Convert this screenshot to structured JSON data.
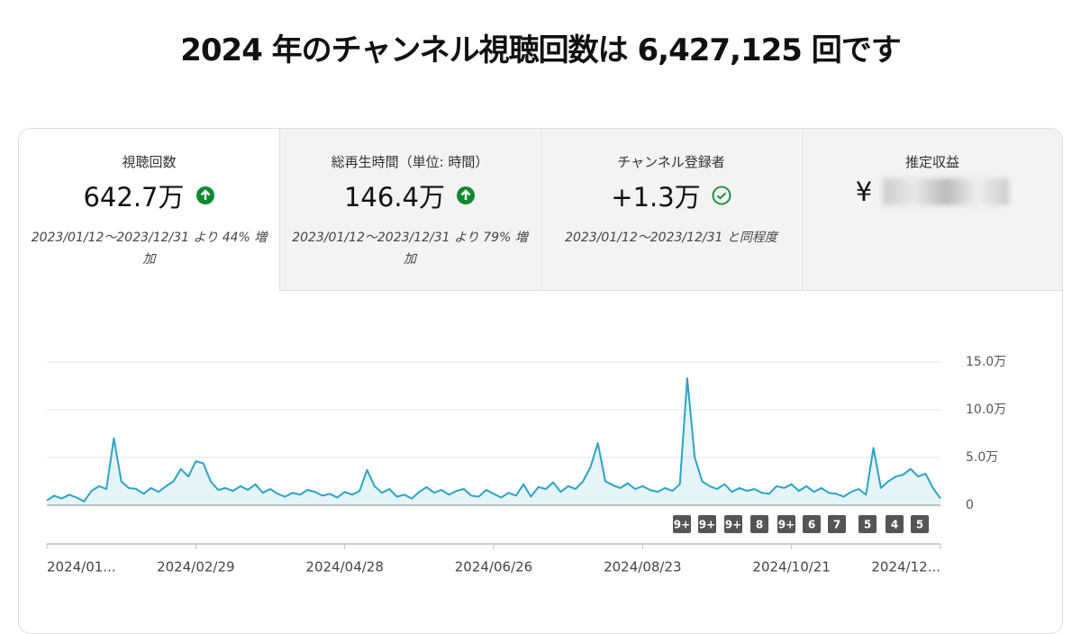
{
  "header": {
    "title": "2024 年のチャンネル視聴回数は 6,427,125 回です"
  },
  "cards": [
    {
      "label": "視聴回数",
      "value": "642.7万",
      "comparison": "2023/01/12～2023/12/31 より 44% 増加"
    },
    {
      "label": "総再生時間（単位: 時間）",
      "value": "146.4万",
      "comparison": "2023/01/12～2023/12/31 より 79% 増加"
    },
    {
      "label": "チャンネル登録者",
      "value": "+1.3万",
      "comparison": "2023/01/12～2023/12/31 と同程度"
    },
    {
      "label": "推定収益",
      "value": "¥"
    }
  ],
  "chart_data": {
    "type": "line",
    "categories": [
      "2024/01...",
      null,
      null,
      null,
      null,
      null,
      null,
      null,
      null,
      null,
      null,
      null,
      null,
      null,
      null,
      null,
      null,
      null,
      null,
      null,
      "2024/02/29",
      null,
      null,
      null,
      null,
      null,
      null,
      null,
      null,
      null,
      null,
      null,
      null,
      null,
      null,
      null,
      null,
      null,
      null,
      null,
      "2024/04/28",
      null,
      null,
      null,
      null,
      null,
      null,
      null,
      null,
      null,
      null,
      null,
      null,
      null,
      null,
      null,
      null,
      null,
      null,
      null,
      "2024/06/26",
      null,
      null,
      null,
      null,
      null,
      null,
      null,
      null,
      null,
      null,
      null,
      null,
      null,
      null,
      null,
      null,
      null,
      null,
      null,
      "2024/08/23",
      null,
      null,
      null,
      null,
      null,
      null,
      null,
      null,
      null,
      null,
      null,
      null,
      null,
      null,
      null,
      null,
      null,
      null,
      null,
      "2024/10/21",
      null,
      null,
      null,
      null,
      null,
      null,
      null,
      null,
      null,
      null,
      null,
      null,
      null,
      null,
      null,
      null,
      null,
      null,
      null,
      "2024/12..."
    ],
    "values": [
      5000,
      10000,
      7000,
      11000,
      8000,
      4000,
      15000,
      20000,
      17000,
      70000,
      25000,
      18000,
      17000,
      12000,
      18000,
      14000,
      20000,
      25000,
      38000,
      30000,
      46000,
      44000,
      25000,
      16000,
      18000,
      15000,
      20000,
      16000,
      22000,
      13000,
      17000,
      12000,
      9000,
      13000,
      11000,
      16000,
      14000,
      10000,
      12000,
      8000,
      14000,
      11000,
      15000,
      37000,
      20000,
      13000,
      17000,
      9000,
      11000,
      7000,
      14000,
      19000,
      13000,
      16000,
      11000,
      15000,
      17000,
      10000,
      9000,
      16000,
      12000,
      8000,
      13000,
      10000,
      22000,
      9000,
      19000,
      17000,
      24000,
      14000,
      20000,
      17000,
      25000,
      40000,
      65000,
      25000,
      21000,
      18000,
      23000,
      17000,
      20000,
      16000,
      14000,
      18000,
      15000,
      22000,
      133000,
      50000,
      25000,
      20000,
      17000,
      22000,
      14000,
      18000,
      15000,
      17000,
      13000,
      12000,
      20000,
      18000,
      22000,
      15000,
      20000,
      14000,
      18000,
      13000,
      12000,
      9000,
      14000,
      17000,
      11000,
      60000,
      18000,
      25000,
      30000,
      32000,
      38000,
      30000,
      33000,
      18000,
      7000
    ],
    "color": "#2ba3c6",
    "ylim": [
      0,
      150000
    ],
    "yticks": [
      0,
      {
        "value": 50000,
        "label": "5.0万"
      },
      {
        "value": 100000,
        "label": "10.0万"
      },
      {
        "value": 150000,
        "label": "15.0万"
      }
    ],
    "grid": true,
    "badges": [
      "9+",
      "9+",
      "9+",
      "8",
      "9+",
      "6",
      "7",
      "5",
      "4",
      "5"
    ]
  }
}
